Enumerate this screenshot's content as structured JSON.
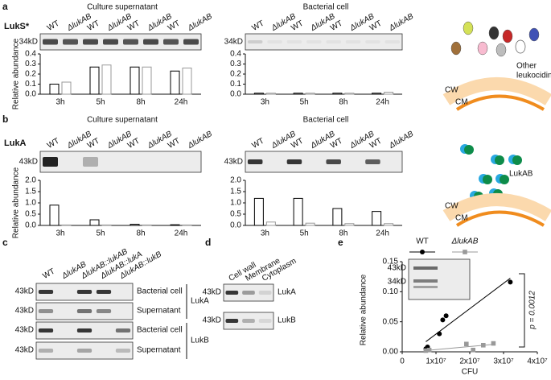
{
  "panels": {
    "a": {
      "label": "a",
      "protein": "LukS*",
      "marker": "34kD",
      "lanes": [
        "WT",
        "ΔlukAB",
        "WT",
        "ΔlukAB",
        "WT",
        "ΔlukAB",
        "WT",
        "ΔlukAB"
      ],
      "supernatant": {
        "type": "bar",
        "title": "Culture supernatant",
        "ylabel": "Relative abundance",
        "categories": [
          "3h",
          "5h",
          "8h",
          "24h"
        ],
        "ylim": [
          0,
          0.4
        ],
        "yticks": [
          {
            "value": 0,
            "label": "0.0"
          },
          {
            "value": 0.1,
            "label": "0.1"
          },
          {
            "value": 0.2,
            "label": "0.2"
          },
          {
            "value": 0.3,
            "label": "0.3"
          },
          {
            "value": 0.4,
            "label": "0.4"
          }
        ],
        "series": [
          {
            "color": "#000000",
            "values": [
              0.1,
              0.27,
              0.27,
              0.23
            ]
          },
          {
            "color": "#999999",
            "values": [
              0.12,
              0.29,
              0.27,
              0.26
            ]
          }
        ]
      },
      "cell": {
        "type": "bar",
        "title": "Bacterial cell",
        "marker": "34kD",
        "categories": [
          "3h",
          "5h",
          "8h",
          "24h"
        ],
        "ylim": [
          0,
          0.4
        ],
        "yticks": [
          {
            "value": 0,
            "label": "0.0"
          },
          {
            "value": 0.1,
            "label": "0.1"
          },
          {
            "value": 0.2,
            "label": "0.2"
          },
          {
            "value": 0.3,
            "label": "0.3"
          },
          {
            "value": 0.4,
            "label": "0.4"
          }
        ],
        "series": [
          {
            "color": "#000000",
            "values": [
              0.01,
              0.01,
              0.01,
              0.01
            ]
          },
          {
            "color": "#999999",
            "values": [
              0.01,
              0.01,
              0.01,
              0.02
            ]
          }
        ]
      },
      "schematic": {
        "lines": [
          "Other",
          "leukocidins"
        ],
        "cw": "CW",
        "cm": "CM"
      }
    },
    "b": {
      "label": "b",
      "protein": "LukA",
      "marker": "43kD",
      "lanes": [
        "WT",
        "ΔlukAB",
        "WT",
        "ΔlukAB",
        "WT",
        "ΔlukAB",
        "WT",
        "ΔlukAB"
      ],
      "supernatant": {
        "type": "bar",
        "title": "Culture supernatant",
        "ylabel": "Relative abundance",
        "categories": [
          "3h",
          "5h",
          "8h",
          "24h"
        ],
        "ylim": [
          0,
          2.0
        ],
        "yticks": [
          {
            "value": 0,
            "label": "0.0"
          },
          {
            "value": 0.5,
            "label": "0.5"
          },
          {
            "value": 1.0,
            "label": "1.0"
          },
          {
            "value": 1.5,
            "label": "1.5"
          },
          {
            "value": 2.0,
            "label": "2.0"
          }
        ],
        "series": [
          {
            "color": "#000000",
            "values": [
              0.9,
              0.25,
              0.05,
              0.03
            ]
          },
          {
            "color": "#999999",
            "values": [
              0.02,
              0.02,
              0.02,
              0.02
            ]
          }
        ]
      },
      "cell": {
        "type": "bar",
        "title": "Bacterial cell",
        "marker": "43kD",
        "categories": [
          "3h",
          "5h",
          "8h",
          "24h"
        ],
        "ylim": [
          0,
          2.0
        ],
        "yticks": [
          {
            "value": 0,
            "label": "0.0"
          },
          {
            "value": 0.5,
            "label": "0.5"
          },
          {
            "value": 1.0,
            "label": "1.0"
          },
          {
            "value": 1.5,
            "label": "1.5"
          },
          {
            "value": 2.0,
            "label": "2.0"
          }
        ],
        "series": [
          {
            "color": "#000000",
            "values": [
              1.2,
              1.2,
              0.75,
              0.62
            ]
          },
          {
            "color": "#999999",
            "values": [
              0.15,
              0.1,
              0.08,
              0.08
            ]
          }
        ]
      },
      "schematic": {
        "name": "LukAB",
        "cw": "CW",
        "cm": "CM"
      }
    },
    "c": {
      "label": "c",
      "lanes": [
        "WT",
        "ΔlukAB",
        "ΔlukAB::lukAB",
        "ΔlukAB::lukA",
        "ΔlukAB::lukB"
      ],
      "rows": [
        {
          "marker": "43kD",
          "label": "Bacterial cell"
        },
        {
          "marker": "43kD",
          "label": "Supernatant"
        },
        {
          "marker": "43kD",
          "label": "Bacterial cell"
        },
        {
          "marker": "43kD",
          "label": "Supernatant"
        }
      ],
      "groups": [
        "LukA",
        "LukB"
      ]
    },
    "d": {
      "label": "d",
      "lanes": [
        "Cell wall",
        "Membrane",
        "Cytoplasm"
      ],
      "rows": [
        {
          "marker": "43kD",
          "label": "LukA"
        },
        {
          "marker": "43kD",
          "label": "LukB"
        }
      ]
    },
    "e": {
      "label": "e",
      "type": "scatter",
      "xlabel": "CFU",
      "ylabel": "Relative abundance",
      "xlim": [
        0,
        40000000
      ],
      "xticks": [
        0,
        {
          "value": 10000000,
          "label": "1x10⁷"
        },
        {
          "value": 20000000,
          "label": "2x10⁷"
        },
        {
          "value": 30000000,
          "label": "3x10⁷"
        },
        {
          "value": 40000000,
          "label": "4x10⁷"
        }
      ],
      "ylim": [
        0,
        0.15
      ],
      "yticks": [
        {
          "value": 0,
          "label": "0.00"
        },
        {
          "value": 0.05,
          "label": "0.05"
        },
        {
          "value": 0.1,
          "label": "0.10"
        },
        {
          "value": 0.15,
          "label": "0.15"
        }
      ],
      "series": [
        {
          "name": "WT",
          "color": "#000000",
          "x": [
            7000000,
            7500000,
            11000000,
            12000000,
            13000000,
            32000000
          ],
          "values": [
            0.005,
            0.008,
            0.03,
            0.053,
            0.06,
            0.116
          ]
        },
        {
          "name": "ΔlukAB",
          "color": "#999999",
          "x": [
            7000000,
            8000000,
            19000000,
            21000000,
            24000000,
            27000000
          ],
          "values": [
            0.002,
            0.003,
            0.013,
            0.003,
            0.011,
            0.014
          ]
        }
      ],
      "markers": [
        "43kD",
        "34kD"
      ],
      "annotation": "p = 0.0012"
    }
  }
}
